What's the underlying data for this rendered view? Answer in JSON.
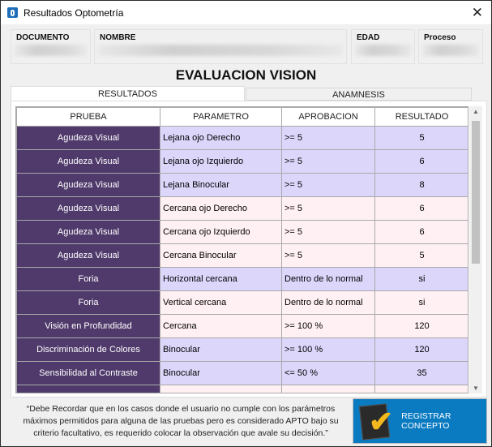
{
  "window": {
    "title": "Resultados Optometría",
    "close": "✕"
  },
  "fields": {
    "documento": "DOCUMENTO",
    "nombre": "NOMBRE",
    "edad": "EDAD",
    "proceso": "Proceso"
  },
  "heading": "EVALUACION VISION",
  "tabs": [
    {
      "label": "RESULTADOS",
      "active": true
    },
    {
      "label": "ANAMNESIS",
      "active": false
    }
  ],
  "table": {
    "headers": [
      "PRUEBA",
      "PARAMETRO",
      "APROBACION",
      "RESULTADO"
    ],
    "rows": [
      {
        "prueba": "Agudeza Visual",
        "parametro": "Lejana ojo Derecho",
        "aprobacion": ">= 5",
        "resultado": "5"
      },
      {
        "prueba": "Agudeza Visual",
        "parametro": "Lejana ojo Izquierdo",
        "aprobacion": ">= 5",
        "resultado": "6"
      },
      {
        "prueba": "Agudeza Visual",
        "parametro": "Lejana Binocular",
        "aprobacion": ">= 5",
        "resultado": "8"
      },
      {
        "prueba": "Agudeza Visual",
        "parametro": "Cercana ojo Derecho",
        "aprobacion": ">= 5",
        "resultado": "6"
      },
      {
        "prueba": "Agudeza Visual",
        "parametro": "Cercana ojo Izquierdo",
        "aprobacion": ">= 5",
        "resultado": "6"
      },
      {
        "prueba": "Agudeza Visual",
        "parametro": "Cercana Binocular",
        "aprobacion": ">= 5",
        "resultado": "5"
      },
      {
        "prueba": "Foria",
        "parametro": "Horizontal cercana",
        "aprobacion": "Dentro de lo normal",
        "resultado": "si"
      },
      {
        "prueba": "Foria",
        "parametro": "Vertical cercana",
        "aprobacion": "Dentro de lo normal",
        "resultado": "si"
      },
      {
        "prueba": "Visión en Profundidad",
        "parametro": "Cercana",
        "aprobacion": ">= 100 %",
        "resultado": "120"
      },
      {
        "prueba": "Discriminación de Colores",
        "parametro": "Binocular",
        "aprobacion": ">= 100 %",
        "resultado": "120"
      },
      {
        "prueba": "Sensibilidad al Contraste",
        "parametro": "Binocular",
        "aprobacion": "<= 50 %",
        "resultado": "35"
      }
    ]
  },
  "note": "“Debe Recordar que en los casos donde el usuario no cumple con los parámetros máximos permitidos para alguna de las pruebas pero es considerado APTO bajo su criterio facultativo, es requerido colocar la observación que avale su decisión.”",
  "button": {
    "label": "REGISTRAR CONCEPTO"
  },
  "colors": {
    "prueba_bg": "#4f3a6b",
    "lavender": "#dcd6fb",
    "pink": "#fff0f3",
    "button": "#0a7ac1"
  }
}
